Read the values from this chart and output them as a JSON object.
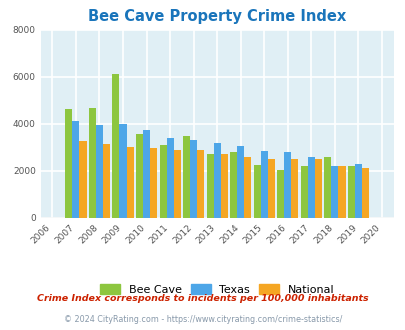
{
  "title": "Bee Cave Property Crime Index",
  "years": [
    "2006",
    "2007",
    "2008",
    "2009",
    "2010",
    "2011",
    "2012",
    "2013",
    "2014",
    "2015",
    "2016",
    "2017",
    "2018",
    "2019",
    "2020"
  ],
  "bee_cave": [
    0,
    4620,
    4650,
    6100,
    3550,
    3100,
    3480,
    2700,
    2800,
    2250,
    2050,
    2200,
    2600,
    2200,
    0
  ],
  "texas": [
    0,
    4100,
    3950,
    4000,
    3750,
    3400,
    3300,
    3200,
    3050,
    2850,
    2800,
    2600,
    2200,
    2300,
    0
  ],
  "national": [
    0,
    3250,
    3150,
    3020,
    2950,
    2900,
    2880,
    2720,
    2600,
    2480,
    2500,
    2480,
    2200,
    2100,
    0
  ],
  "bar_colors": {
    "bee_cave": "#8dc63f",
    "texas": "#4da6e8",
    "national": "#f5a623"
  },
  "ylim": [
    0,
    8000
  ],
  "yticks": [
    0,
    2000,
    4000,
    6000,
    8000
  ],
  "background_color": "#e0eff5",
  "grid_color": "#ffffff",
  "title_color": "#1a75bb",
  "title_fontsize": 10.5,
  "legend_labels": [
    "Bee Cave",
    "Texas",
    "National"
  ],
  "footnote1": "Crime Index corresponds to incidents per 100,000 inhabitants",
  "footnote2": "© 2024 CityRating.com - https://www.cityrating.com/crime-statistics/",
  "footnote1_color": "#cc2200",
  "footnote2_color": "#8899aa"
}
